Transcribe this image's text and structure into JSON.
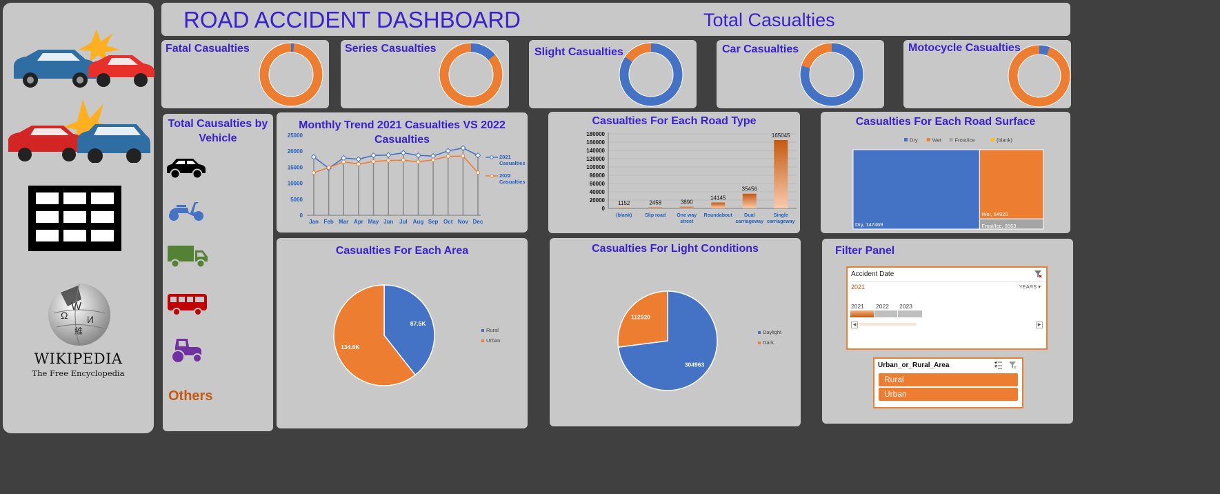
{
  "header": {
    "title": "ROAD ACCIDENT DASHBOARD",
    "subtitle": "Total Casualties"
  },
  "sidebar": {
    "wikipedia_name": "WIKIPEDIA",
    "wikipedia_tagline": "The Free Encyclopedia"
  },
  "kpis": [
    {
      "title": "Fatal Casualties",
      "share": 0.016
    },
    {
      "title": "Series Casualties",
      "share": 0.14
    },
    {
      "title": "Slight Casualties",
      "share": 0.845
    },
    {
      "title": "Car Casualties",
      "share": 0.795
    },
    {
      "title": "Motocycle Casualties",
      "share": 0.055
    }
  ],
  "vehicle_panel": {
    "title_line1": "Total Causalties by",
    "title_line2": "Vehicle",
    "icons": [
      "car-icon",
      "scooter-icon",
      "truck-icon",
      "bus-icon",
      "tractor-icon"
    ],
    "others_label": "Others"
  },
  "colors": {
    "blue": "#4472c4",
    "orange": "#ed7d31",
    "title": "#3a1fd1",
    "axis": "#1f5fbf"
  },
  "chart_data": [
    {
      "id": "monthly",
      "type": "line",
      "title_line1": "Monthly Trend 2021 Casualties VS  2022",
      "title_line2": "Casualties",
      "categories": [
        "Jan",
        "Feb",
        "Mar",
        "Apr",
        "May",
        "Jun",
        "Jul",
        "Aug",
        "Sep",
        "Oct",
        "Nov",
        "Dec"
      ],
      "ylim": [
        0,
        25000
      ],
      "yticks": [
        "0",
        "5000",
        "10000",
        "15000",
        "20000",
        "25000"
      ],
      "series": [
        {
          "name_line1": "2021",
          "name_line2": "Casualties",
          "color": "#4472c4",
          "values": [
            18200,
            14700,
            17900,
            17500,
            18700,
            18800,
            19500,
            18700,
            18500,
            20100,
            21000,
            18700
          ]
        },
        {
          "name_line1": "2022",
          "name_line2": "Casualties",
          "color": "#ed7d31",
          "values": [
            13300,
            14900,
            16700,
            16000,
            16800,
            17100,
            17200,
            16700,
            17300,
            18400,
            18500,
            13300
          ]
        }
      ]
    },
    {
      "id": "roadtype",
      "type": "bar",
      "title": "Casualties For Each Road Type",
      "ylim": [
        0,
        180000
      ],
      "yticks": [
        "0",
        "20000",
        "40000",
        "60000",
        "80000",
        "100000",
        "120000",
        "140000",
        "160000",
        "180000"
      ],
      "categories": [
        {
          "line1": "(blank)",
          "line2": ""
        },
        {
          "line1": "Slip road",
          "line2": ""
        },
        {
          "line1": "One way",
          "line2": "street"
        },
        {
          "line1": "Roundabout",
          "line2": ""
        },
        {
          "line1": "Dual",
          "line2": "carriageway"
        },
        {
          "line1": "Single",
          "line2": "carriageway"
        }
      ],
      "values": [
        1152,
        2458,
        3890,
        14145,
        35456,
        165045
      ],
      "labels": [
        "1152",
        "2458",
        "3890",
        "14145",
        "35456",
        "165045"
      ]
    },
    {
      "id": "surface",
      "type": "treemap",
      "title": "Casualties For Each Road Surface",
      "legend": [
        "Dry",
        "Wet",
        "Frost/Ice",
        "(blank)"
      ],
      "legend_colors": [
        "#4472c4",
        "#ed7d31",
        "#a5a5a5",
        "#ffc000"
      ],
      "items": [
        {
          "name": "Dry",
          "value": 147469,
          "label": "Dry, 147469"
        },
        {
          "name": "Wet",
          "value": 64920,
          "label": "Wet, 64920"
        },
        {
          "name": "Frost/Ice",
          "value": 9563,
          "label": "Frost/Ice, 9563"
        }
      ]
    },
    {
      "id": "area",
      "type": "pie",
      "title": "Casualties For Each Area",
      "slices": [
        {
          "name": "Rural",
          "value": 87.5,
          "label": "87.5K",
          "color": "#4472c4"
        },
        {
          "name": "Urban",
          "value": 134.6,
          "label": "134.6K",
          "color": "#ed7d31"
        }
      ]
    },
    {
      "id": "light",
      "type": "pie",
      "title": "Casualties For Light Conditions",
      "slices": [
        {
          "name": "Daylight",
          "value": 304963,
          "label": "304963",
          "color": "#4472c4"
        },
        {
          "name": "Dark",
          "value": 112920,
          "label": "112920",
          "color": "#ed7d31"
        }
      ]
    }
  ],
  "filter_panel": {
    "title": "Filter Panel",
    "date_slicer": {
      "header": "Accident Date",
      "selected": "2021",
      "level": "YEARS",
      "years": [
        "2021",
        "2022",
        "2023"
      ]
    },
    "area_slicer": {
      "header": "Urban_or_Rural_Area",
      "items": [
        "Rural",
        "Urban"
      ]
    }
  }
}
